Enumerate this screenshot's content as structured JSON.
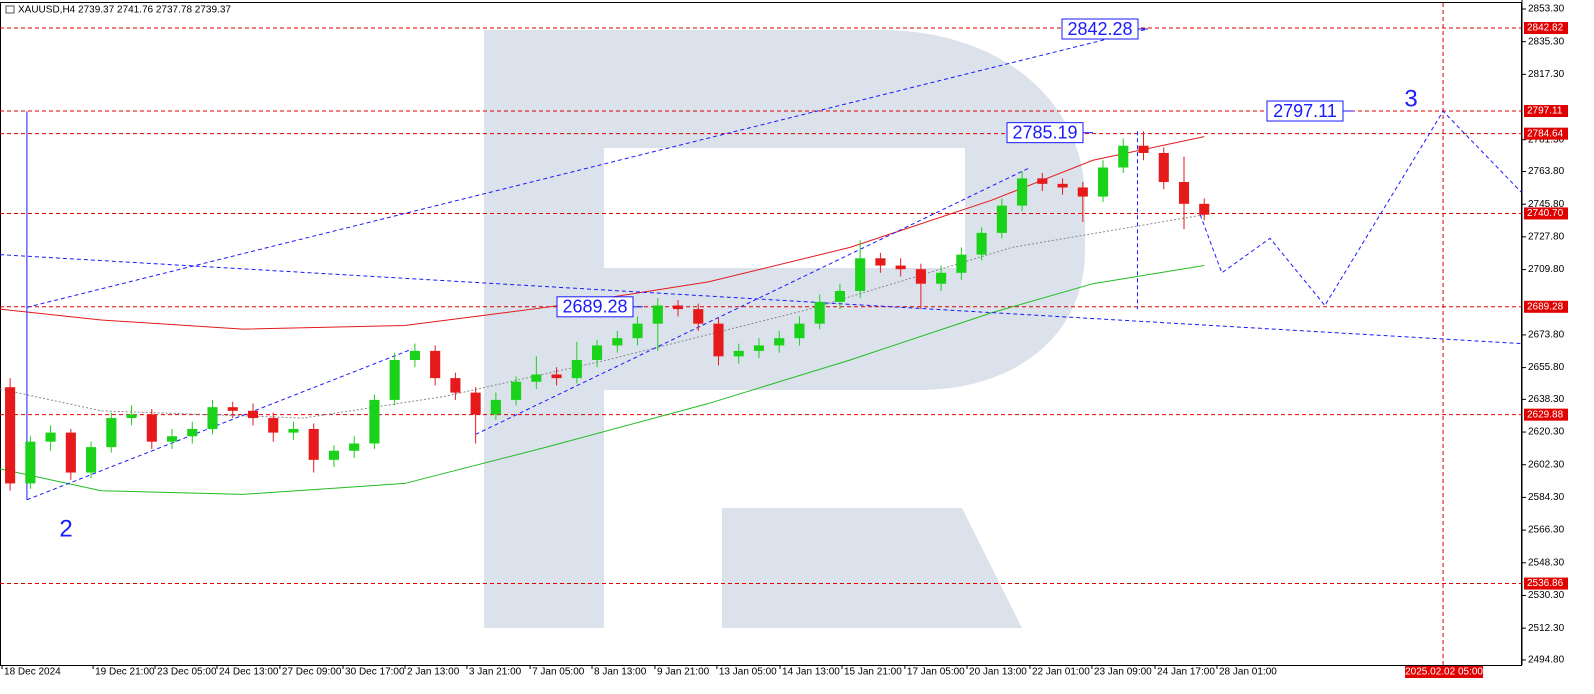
{
  "chart_data": {
    "type": "candlestick",
    "title": "XAUUSD,H4 2739.37 2741.76 2737.78 2739.37",
    "open": [
      2645,
      2592,
      2615,
      2620,
      2598,
      2612,
      2628,
      2630,
      2615,
      2618,
      2622,
      2634,
      2632,
      2628,
      2620,
      2622,
      2605,
      2610,
      2614,
      2638,
      2660,
      2665,
      2650,
      2642,
      2630,
      2638,
      2648,
      2652,
      2650,
      2660,
      2668,
      2672,
      2680,
      2690,
      2688,
      2680,
      2662,
      2665,
      2668,
      2672,
      2680,
      2692,
      2698,
      2716,
      2712,
      2710,
      2702,
      2708,
      2718,
      2730,
      2745,
      2760,
      2757,
      2755,
      2750,
      2766,
      2778,
      2774,
      2758,
      2746
    ],
    "high": [
      2650,
      2618,
      2624,
      2622,
      2615,
      2631,
      2635,
      2633,
      2622,
      2626,
      2638,
      2637,
      2636,
      2631,
      2626,
      2625,
      2613,
      2618,
      2641,
      2664,
      2669,
      2668,
      2653,
      2645,
      2642,
      2651,
      2662,
      2656,
      2670,
      2671,
      2676,
      2684,
      2694,
      2693,
      2691,
      2683,
      2669,
      2672,
      2676,
      2684,
      2696,
      2702,
      2726,
      2719,
      2716,
      2713,
      2712,
      2722,
      2733,
      2749,
      2764,
      2763,
      2760,
      2758,
      2770,
      2782,
      2786,
      2777,
      2772,
      2749
    ],
    "low": [
      2588,
      2589,
      2610,
      2594,
      2595,
      2609,
      2624,
      2611,
      2611,
      2614,
      2619,
      2628,
      2624,
      2615,
      2616,
      2598,
      2601,
      2606,
      2611,
      2635,
      2656,
      2646,
      2638,
      2614,
      2627,
      2635,
      2644,
      2646,
      2647,
      2656,
      2664,
      2668,
      2665,
      2684,
      2676,
      2657,
      2658,
      2661,
      2664,
      2668,
      2677,
      2688,
      2694,
      2708,
      2706,
      2688,
      2698,
      2704,
      2715,
      2727,
      2742,
      2753,
      2751,
      2736,
      2747,
      2763,
      2770,
      2754,
      2732,
      2737
    ],
    "close": [
      2592,
      2615,
      2620,
      2598,
      2612,
      2628,
      2630,
      2615,
      2618,
      2622,
      2634,
      2632,
      2628,
      2620,
      2622,
      2605,
      2610,
      2614,
      2638,
      2660,
      2665,
      2650,
      2642,
      2630,
      2638,
      2648,
      2652,
      2650,
      2660,
      2668,
      2672,
      2680,
      2690,
      2688,
      2680,
      2662,
      2665,
      2668,
      2672,
      2680,
      2692,
      2698,
      2716,
      2712,
      2710,
      2702,
      2708,
      2718,
      2730,
      2745,
      2760,
      2757,
      2755,
      2750,
      2766,
      2778,
      2774,
      2758,
      2746,
      2740
    ],
    "up_color": "#19d219",
    "down_color": "#e61a1a",
    "xlim": [
      0,
      75.2
    ],
    "xticks": [
      {
        "value": 0.1,
        "label": "18 Dec 2024"
      },
      {
        "value": 4.6,
        "label": "19 Dec 21:00"
      },
      {
        "value": 7.66,
        "label": "23 Dec 05:00"
      },
      {
        "value": 10.72,
        "label": "24 Dec 13:00"
      },
      {
        "value": 13.83,
        "label": "27 Dec 09:00"
      },
      {
        "value": 16.95,
        "label": "30 Dec 17:00"
      },
      {
        "value": 20.01,
        "label": "2 Jan 13:00"
      },
      {
        "value": 23.07,
        "label": "3 Jan 21:00"
      },
      {
        "value": 26.19,
        "label": "7 Jan 05:00"
      },
      {
        "value": 29.25,
        "label": "8 Jan 13:00"
      },
      {
        "value": 32.36,
        "label": "9 Jan 21:00"
      },
      {
        "value": 35.42,
        "label": "13 Jan 05:00"
      },
      {
        "value": 38.54,
        "label": "14 Jan 13:00"
      },
      {
        "value": 41.6,
        "label": "15 Jan 21:00"
      },
      {
        "value": 44.71,
        "label": "17 Jan 05:00"
      },
      {
        "value": 47.78,
        "label": "20 Jan 13:00"
      },
      {
        "value": 50.89,
        "label": "22 Jan 01:00"
      },
      {
        "value": 53.95,
        "label": "23 Jan 09:00"
      },
      {
        "value": 57.07,
        "label": "24 Jan 17:00"
      },
      {
        "value": 60.13,
        "label": "28 Jan 01:00"
      }
    ],
    "time_marker": {
      "value": 71.3,
      "label": "2025.02.02 05:00"
    },
    "ylim": [
      2492.0,
      2856.6
    ],
    "yticks": [
      {
        "value": 2853.3,
        "label": "2853.30"
      },
      {
        "value": 2835.3,
        "label": "2835.30"
      },
      {
        "value": 2817.3,
        "label": "2817.30"
      },
      {
        "value": 2781.3,
        "label": "2781.30"
      },
      {
        "value": 2763.8,
        "label": "2763.80"
      },
      {
        "value": 2745.8,
        "label": "2745.80"
      },
      {
        "value": 2727.8,
        "label": "2727.80"
      },
      {
        "value": 2709.8,
        "label": "2709.80"
      },
      {
        "value": 2673.8,
        "label": "2673.80"
      },
      {
        "value": 2655.8,
        "label": "2655.80"
      },
      {
        "value": 2638.3,
        "label": "2638.30"
      },
      {
        "value": 2620.3,
        "label": "2620.30"
      },
      {
        "value": 2602.3,
        "label": "2602.30"
      },
      {
        "value": 2584.3,
        "label": "2584.30"
      },
      {
        "value": 2566.3,
        "label": "2566.30"
      },
      {
        "value": 2548.3,
        "label": "2548.30"
      },
      {
        "value": 2530.3,
        "label": "2530.30"
      },
      {
        "value": 2512.3,
        "label": "2512.30"
      },
      {
        "value": 2494.8,
        "label": "2494.80"
      }
    ],
    "levels": [
      2842.82,
      2797.11,
      2784.64,
      {
        "value": 2740.7,
        "label": "2740.70"
      },
      2689.28,
      2629.88,
      2536.86
    ],
    "level_color": "#e00000",
    "lines": [
      {
        "x": [
          0,
          5,
          12,
          20,
          27,
          35,
          42,
          49,
          54,
          59.5
        ],
        "values": [
          2688,
          2682,
          2677,
          2679,
          2689,
          2703,
          2722,
          2748,
          2770,
          2783
        ],
        "color": "#e31a1a",
        "style": "solid"
      },
      {
        "x": [
          0,
          5,
          12,
          20,
          27,
          35,
          42,
          49,
          54,
          59.5
        ],
        "values": [
          2600,
          2588,
          2586,
          2592,
          2612,
          2636,
          2660,
          2686,
          2702,
          2712
        ],
        "color": "#22bb22",
        "style": "solid"
      },
      {
        "x": [
          0,
          5,
          15,
          22,
          30,
          40,
          50,
          59.5
        ],
        "values": [
          2644,
          2632,
          2628,
          2640,
          2660,
          2688,
          2722,
          2740
        ],
        "color": "#8a8a8a",
        "style": "dotted"
      },
      {
        "x": [
          1.33,
          56.6
        ],
        "values": [
          2689,
          2842
        ],
        "color": "#1a1aff",
        "style": "dashed"
      },
      {
        "x": [
          1.33,
          20.36
        ],
        "values": [
          2583,
          2666
        ],
        "color": "#1a1aff",
        "style": "dashed"
      },
      {
        "x": [
          23.5,
          50.9
        ],
        "values": [
          2619,
          2766
        ],
        "color": "#1a1aff",
        "style": "dashed"
      },
      {
        "x": [
          0,
          75.2
        ],
        "values": [
          2718,
          2669
        ],
        "color": "#1a1aff",
        "style": "dashed"
      },
      {
        "x": [
          1.33,
          1.33
        ],
        "values": [
          2583,
          2797
        ],
        "color": "#1a1aff",
        "style": "solid"
      },
      {
        "x": [
          56.2,
          56.2
        ],
        "values": [
          2786,
          2688
        ],
        "color": "#1a1aff",
        "style": "dashed"
      },
      {
        "x": [
          59.3,
          60.37,
          62.75,
          65.46,
          71.3,
          75.2
        ],
        "values": [
          2740,
          2708,
          2727,
          2690,
          2797,
          2752
        ],
        "color": "#1a1aff",
        "style": "dashed"
      }
    ],
    "price_labels": [
      2842.28,
      2785.19,
      2797.11,
      2689.28
    ],
    "wave_labels": [
      "2",
      "3"
    ]
  }
}
